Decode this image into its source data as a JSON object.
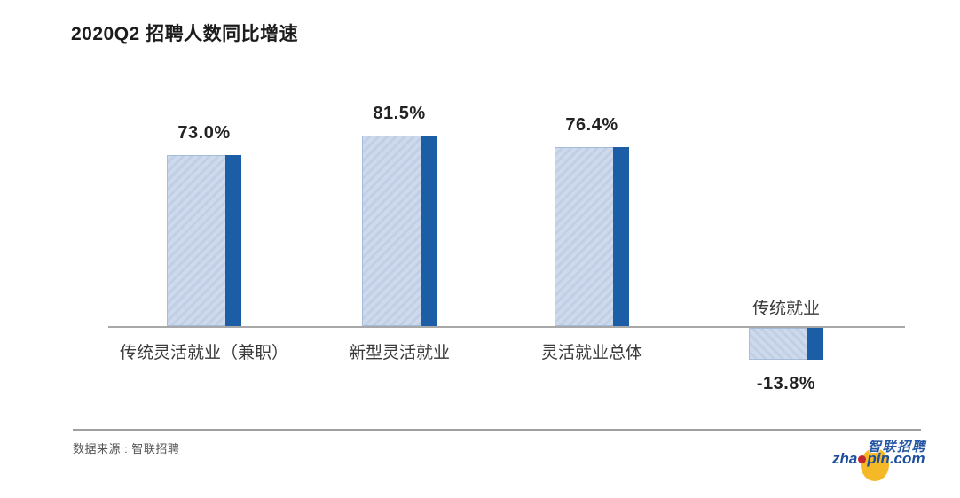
{
  "chart_data": {
    "type": "bar",
    "title": "2020Q2 招聘人数同比增速",
    "categories": [
      "传统灵活就业（兼职）",
      "新型灵活就业",
      "灵活就业总体",
      "传统就业"
    ],
    "values": [
      73.0,
      81.5,
      76.4,
      -13.8
    ],
    "value_labels": [
      "73.0%",
      "81.5%",
      "76.4%",
      "-13.8%"
    ],
    "unit": "%",
    "xlabel": "",
    "ylabel": "",
    "ylim": [
      -20,
      90
    ],
    "grid": false,
    "legend": false,
    "axis_visible": "x-only",
    "bar_style": "light hatched body with dark solid strip on right edge"
  },
  "footer": {
    "source": "数据来源 : 智联招聘"
  },
  "logo": {
    "brand_cn": "智联招聘",
    "url_part1": "zha",
    "url_part2": "pin.com"
  },
  "colors": {
    "bar_dark_blue": "#1b5ea6",
    "bar_hatch_light": "#cedaec",
    "bar_hatch_stripe": "#bfcfe6",
    "bar_border": "#a5bcdb",
    "axis_gray": "#a8a8a8",
    "title_text": "#1c1c1c",
    "logo_yellow": "#f5b826",
    "logo_red": "#c1272d",
    "logo_blue": "#1c4e9e"
  }
}
